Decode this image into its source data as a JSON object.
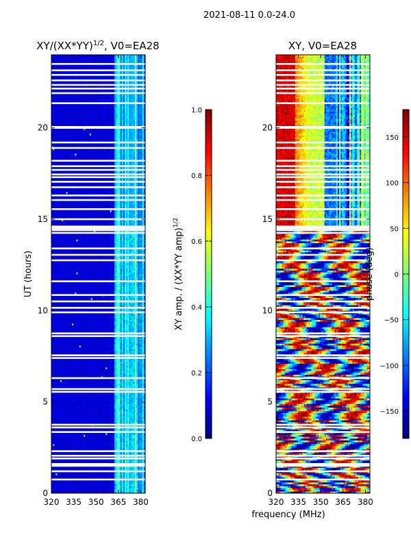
{
  "suptitle": "2021-08-11 0.0-24.0",
  "shared": {
    "xlabel": "frequency (MHz)",
    "ylabel": "UT (hours)",
    "xlim": [
      320,
      383
    ],
    "ylim": [
      0,
      24
    ],
    "xticks": [
      320,
      335,
      350,
      365,
      380
    ],
    "yticks": [
      0,
      5,
      10,
      15,
      20
    ],
    "gaps_ut_hours": [
      0.75,
      1.2,
      1.5,
      1.55,
      1.6,
      1.9,
      2.05,
      2.3,
      3.35,
      3.6,
      3.75,
      5.55,
      5.7,
      6.3,
      7.4,
      7.55,
      8.6,
      8.75,
      9.9,
      10.15,
      10.5,
      10.85,
      11.6,
      12.75,
      13.05,
      13.4,
      14.25,
      14.4,
      14.5,
      14.6,
      15.0,
      15.55,
      16.05,
      16.3,
      16.75,
      17.05,
      17.3,
      17.45,
      17.7,
      17.9,
      18.2,
      18.9,
      19.2,
      20.0,
      20.05,
      21.35,
      21.9,
      22.15,
      22.35,
      22.6,
      22.9,
      23.15,
      23.5
    ]
  },
  "chart_data": [
    {
      "type": "heatmap",
      "title": "XY/(XX*YY)",
      "title_exponent": "1/2",
      "title_suffix": ", V0=EA28",
      "xlabel": "",
      "ylabel": "UT (hours)",
      "xlim": [
        320,
        383
      ],
      "ylim": [
        0,
        24
      ],
      "xticks": [
        320,
        335,
        350,
        365,
        380
      ],
      "yticks": [
        0,
        5,
        10,
        15,
        20
      ],
      "colormap": "jet",
      "colorbar": {
        "label": "XY amp. / (XX*YY amp)",
        "label_exponent": "1/2",
        "range": [
          0.0,
          1.0
        ],
        "ticks": [
          "0.0",
          "0.2",
          "0.4",
          "0.6",
          "0.8",
          "1.0"
        ]
      },
      "description": "Low values (~0.05) across most of the band; elevated normalized amplitude (0.2-0.6) in the 362-383 MHz range"
    },
    {
      "type": "heatmap",
      "title": "XY, V0=EA28",
      "xlabel": "frequency (MHz)",
      "ylabel": "",
      "xlim": [
        320,
        383
      ],
      "ylim": [
        0,
        24
      ],
      "xticks": [
        320,
        335,
        350,
        365,
        380
      ],
      "yticks": [
        0,
        5,
        10,
        15,
        20
      ],
      "colormap": "jet",
      "colorbar": {
        "label": "phase (deg)",
        "range": [
          -180,
          180
        ],
        "ticks": [
          "-150",
          "-100",
          "-50",
          "0",
          "50",
          "100",
          "150"
        ]
      },
      "description": "Phase varying smoothly with frequency after ~14.5 UT (red ~150 deg near 320-333 MHz, yellow/green ~0-50 deg near 343-352 MHz, blue ~-100 deg near 352-360 MHz); noisy mixed phases before 14.5 UT"
    }
  ]
}
